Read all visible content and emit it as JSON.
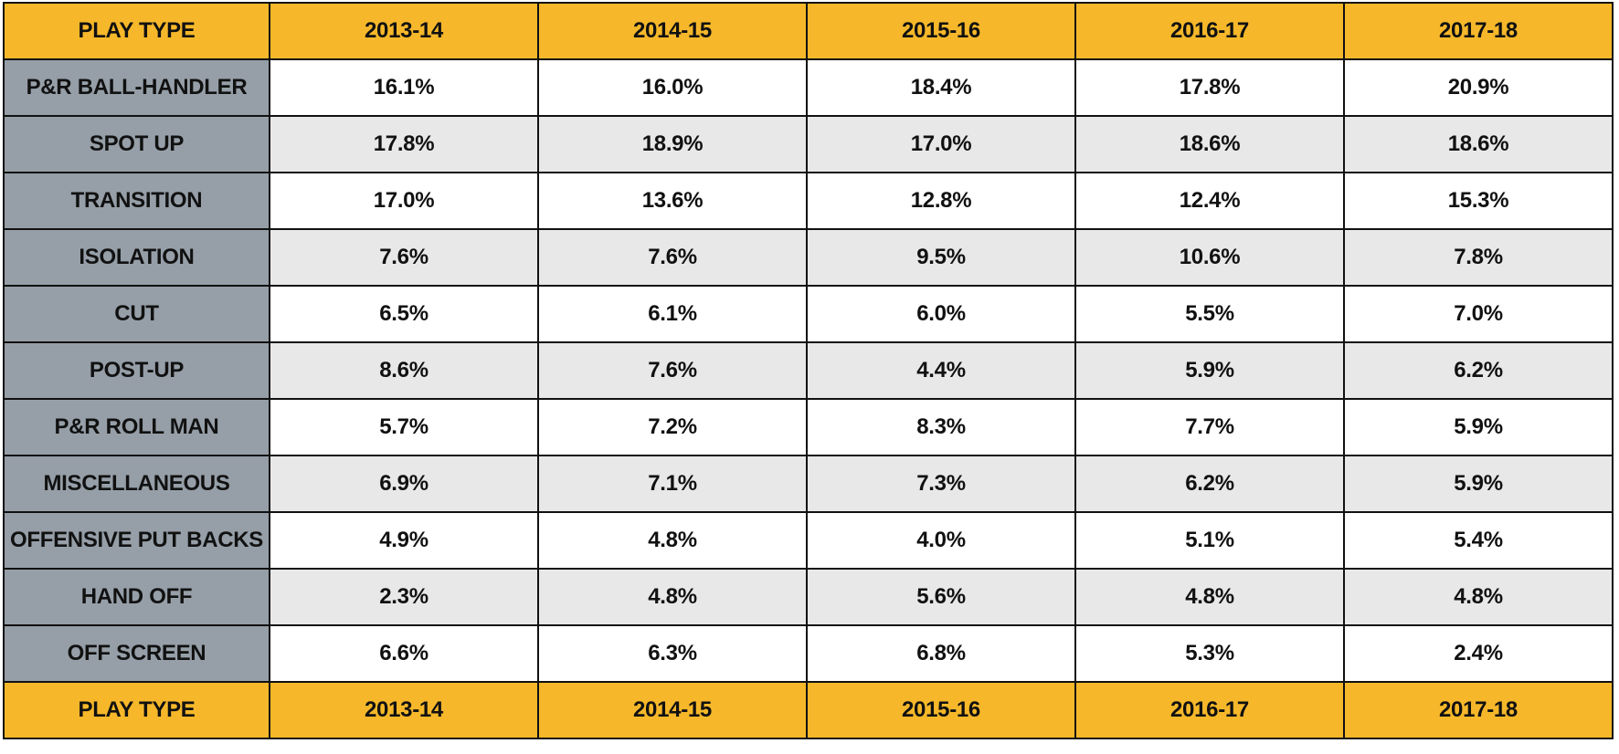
{
  "colors": {
    "header_bg": "#F6B82A",
    "label_bg": "#969FA8",
    "row_white": "#FFFFFF",
    "row_grey": "#E8E8E8",
    "border": "#111111",
    "text": "#111111"
  },
  "chart_data": {
    "type": "table",
    "columns": [
      "PLAY TYPE",
      "2013-14",
      "2014-15",
      "2015-16",
      "2016-17",
      "2017-18"
    ],
    "footer": [
      "PLAY TYPE",
      "2013-14",
      "2014-15",
      "2015-16",
      "2016-17",
      "2017-18"
    ],
    "rows": [
      {
        "label": "P&R BALL-HANDLER",
        "values": [
          "16.1%",
          "16.0%",
          "18.4%",
          "17.8%",
          "20.9%"
        ]
      },
      {
        "label": "SPOT UP",
        "values": [
          "17.8%",
          "18.9%",
          "17.0%",
          "18.6%",
          "18.6%"
        ]
      },
      {
        "label": "TRANSITION",
        "values": [
          "17.0%",
          "13.6%",
          "12.8%",
          "12.4%",
          "15.3%"
        ]
      },
      {
        "label": "ISOLATION",
        "values": [
          "7.6%",
          "7.6%",
          "9.5%",
          "10.6%",
          "7.8%"
        ]
      },
      {
        "label": "CUT",
        "values": [
          "6.5%",
          "6.1%",
          "6.0%",
          "5.5%",
          "7.0%"
        ]
      },
      {
        "label": "POST-UP",
        "values": [
          "8.6%",
          "7.6%",
          "4.4%",
          "5.9%",
          "6.2%"
        ]
      },
      {
        "label": "P&R ROLL MAN",
        "values": [
          "5.7%",
          "7.2%",
          "8.3%",
          "7.7%",
          "5.9%"
        ]
      },
      {
        "label": "MISCELLANEOUS",
        "values": [
          "6.9%",
          "7.1%",
          "7.3%",
          "6.2%",
          "5.9%"
        ]
      },
      {
        "label": "OFFENSIVE PUT BACKS",
        "values": [
          "4.9%",
          "4.8%",
          "4.0%",
          "5.1%",
          "5.4%"
        ]
      },
      {
        "label": "HAND OFF",
        "values": [
          "2.3%",
          "4.8%",
          "5.6%",
          "4.8%",
          "4.8%"
        ]
      },
      {
        "label": "OFF SCREEN",
        "values": [
          "6.6%",
          "6.3%",
          "6.8%",
          "5.3%",
          "2.4%"
        ]
      }
    ]
  }
}
